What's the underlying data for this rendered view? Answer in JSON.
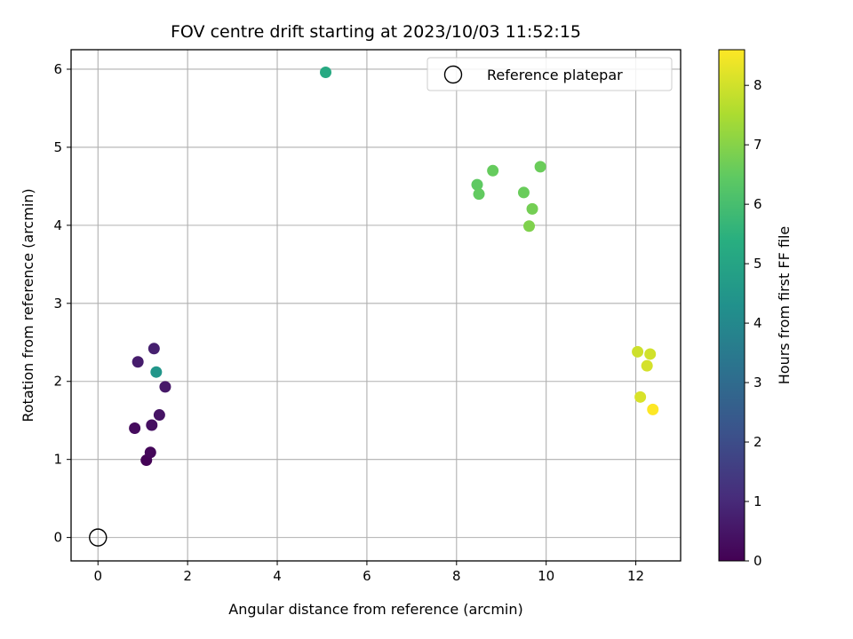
{
  "chart_data": {
    "type": "scatter",
    "title": "FOV centre drift starting at 2023/10/03 11:52:15",
    "xlabel": "Angular distance from reference (arcmin)",
    "ylabel": "Rotation from reference (arcmin)",
    "xlim": [
      -0.6,
      13.0
    ],
    "ylim": [
      -0.3,
      6.25
    ],
    "xticks": [
      0,
      2,
      4,
      6,
      8,
      10,
      12
    ],
    "yticks": [
      0,
      1,
      2,
      3,
      4,
      5,
      6
    ],
    "grid": true,
    "legend": {
      "placement": "top-right",
      "entries": [
        {
          "label": "Reference platepar",
          "marker": "open-circle"
        }
      ]
    },
    "reference_point": {
      "x": 0,
      "y": 0
    },
    "colorbar": {
      "label": "Hours from first FF file",
      "colormap": "viridis",
      "range": [
        0,
        8.6
      ],
      "ticks": [
        0,
        1,
        2,
        3,
        4,
        5,
        6,
        7,
        8
      ]
    },
    "points": [
      {
        "x": 1.08,
        "y": 0.99,
        "hours": 0.05
      },
      {
        "x": 1.17,
        "y": 1.09,
        "hours": 0.15
      },
      {
        "x": 0.82,
        "y": 1.4,
        "hours": 0.25
      },
      {
        "x": 1.2,
        "y": 1.44,
        "hours": 0.35
      },
      {
        "x": 1.37,
        "y": 1.57,
        "hours": 0.45
      },
      {
        "x": 1.5,
        "y": 1.93,
        "hours": 0.55
      },
      {
        "x": 0.89,
        "y": 2.25,
        "hours": 0.65
      },
      {
        "x": 1.25,
        "y": 2.42,
        "hours": 0.75
      },
      {
        "x": 1.3,
        "y": 2.12,
        "hours": 4.5
      },
      {
        "x": 5.08,
        "y": 5.96,
        "hours": 5.2
      },
      {
        "x": 8.46,
        "y": 4.52,
        "hours": 6.45
      },
      {
        "x": 8.5,
        "y": 4.4,
        "hours": 6.5
      },
      {
        "x": 8.81,
        "y": 4.7,
        "hours": 6.55
      },
      {
        "x": 9.5,
        "y": 4.42,
        "hours": 6.6
      },
      {
        "x": 9.87,
        "y": 4.75,
        "hours": 6.62
      },
      {
        "x": 9.69,
        "y": 4.21,
        "hours": 6.75
      },
      {
        "x": 9.62,
        "y": 3.99,
        "hours": 6.9
      },
      {
        "x": 12.04,
        "y": 2.38,
        "hours": 7.95
      },
      {
        "x": 12.32,
        "y": 2.35,
        "hours": 8.0
      },
      {
        "x": 12.25,
        "y": 2.2,
        "hours": 8.05
      },
      {
        "x": 12.1,
        "y": 1.8,
        "hours": 8.1
      },
      {
        "x": 12.38,
        "y": 1.64,
        "hours": 8.6
      }
    ]
  }
}
